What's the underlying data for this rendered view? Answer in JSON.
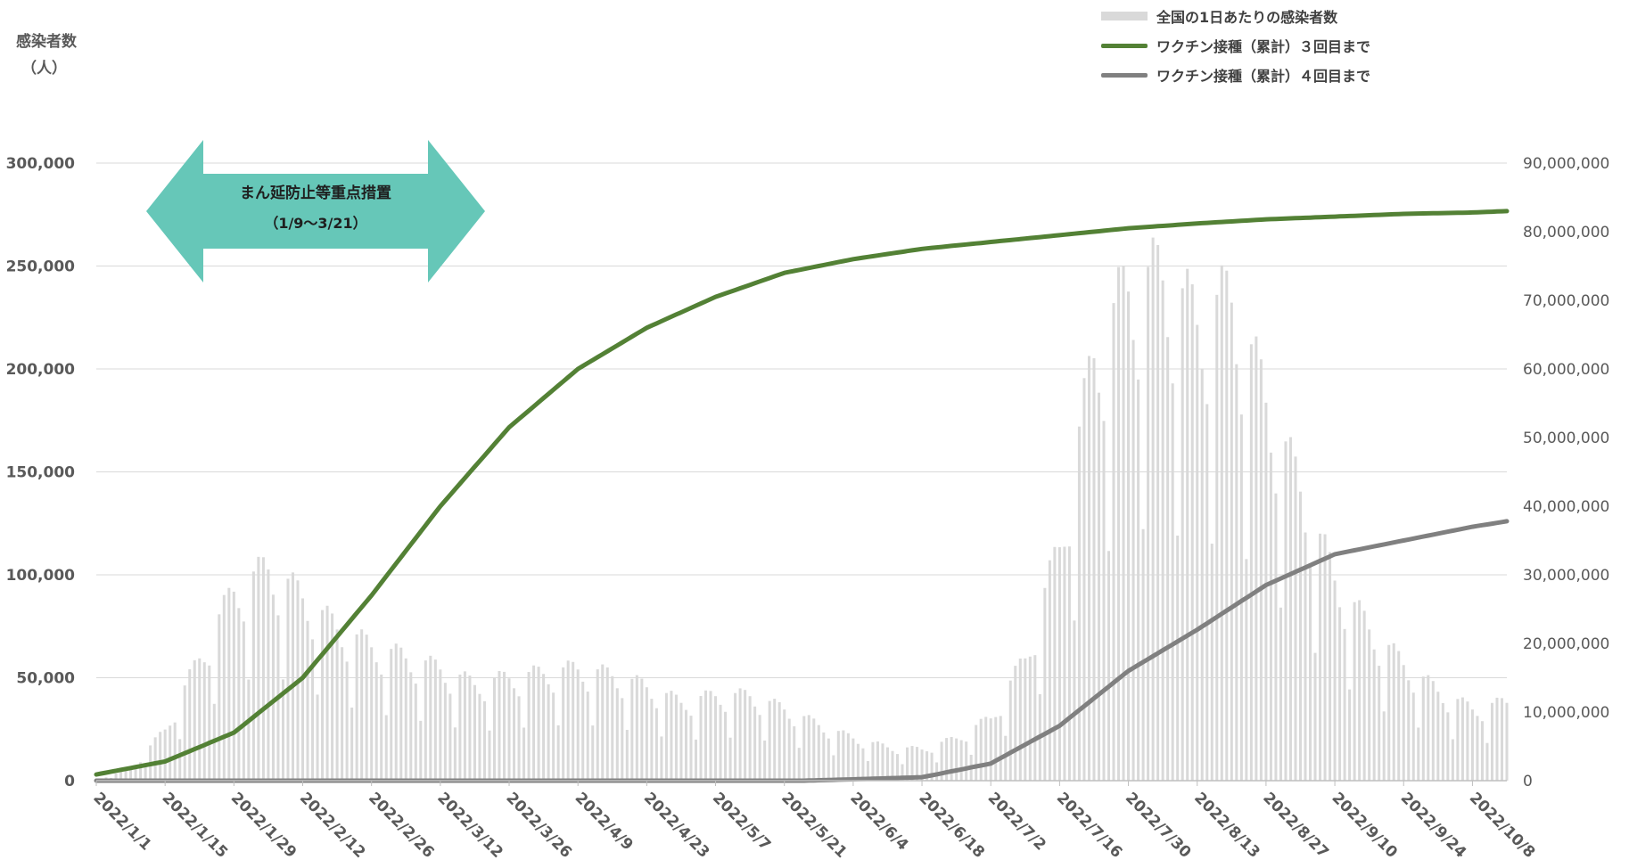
{
  "chart_data": {
    "type": "bar+line",
    "title": "",
    "ylabel_left": "感染者数",
    "ylabel_left_unit": "（人）",
    "ylim_left": [
      0,
      300000
    ],
    "ylim_right": [
      0,
      90000000
    ],
    "left_ticks": [
      "0",
      "50,000",
      "100,000",
      "150,000",
      "200,000",
      "250,000",
      "300,000"
    ],
    "right_ticks": [
      "0",
      "10,000,000",
      "20,000,000",
      "30,000,000",
      "40,000,000",
      "50,000,000",
      "60,000,000",
      "70,000,000",
      "80,000,000",
      "90,000,000"
    ],
    "x_tick_labels": [
      "2022/1/1",
      "2022/1/15",
      "2022/1/29",
      "2022/2/12",
      "2022/2/26",
      "2022/3/12",
      "2022/3/26",
      "2022/4/9",
      "2022/4/23",
      "2022/5/7",
      "2022/5/21",
      "2022/6/4",
      "2022/6/18",
      "2022/7/2",
      "2022/7/16",
      "2022/7/30",
      "2022/8/13",
      "2022/8/27",
      "2022/9/10",
      "2022/9/24",
      "2022/10/8"
    ],
    "start_date": "2022/1/1",
    "num_days": 288,
    "grid": true,
    "legend_position": "top-right",
    "annotation": {
      "line1": "まん延防止等重点措置",
      "line2": "（1/9～3/21）",
      "start": "2022/1/9",
      "end": "2022/3/21",
      "color": "#66c7b8"
    },
    "series": [
      {
        "name": "全国の1日あたりの感染者数",
        "kind": "bar",
        "axis": "left",
        "color": "#d9d9d9",
        "weekly_avg": [
          {
            "date": "2022/1/1",
            "value": 500
          },
          {
            "date": "2022/1/8",
            "value": 5000
          },
          {
            "date": "2022/1/15",
            "value": 23000
          },
          {
            "date": "2022/1/22",
            "value": 55000
          },
          {
            "date": "2022/1/29",
            "value": 85000
          },
          {
            "date": "2022/2/5",
            "value": 95000
          },
          {
            "date": "2022/2/12",
            "value": 82000
          },
          {
            "date": "2022/2/19",
            "value": 68000
          },
          {
            "date": "2022/2/26",
            "value": 60000
          },
          {
            "date": "2022/3/5",
            "value": 55000
          },
          {
            "date": "2022/3/12",
            "value": 50000
          },
          {
            "date": "2022/3/19",
            "value": 43000
          },
          {
            "date": "2022/3/26",
            "value": 46000
          },
          {
            "date": "2022/4/2",
            "value": 48000
          },
          {
            "date": "2022/4/9",
            "value": 50000
          },
          {
            "date": "2022/4/16",
            "value": 47000
          },
          {
            "date": "2022/4/23",
            "value": 42000
          },
          {
            "date": "2022/4/30",
            "value": 35000
          },
          {
            "date": "2022/5/7",
            "value": 38000
          },
          {
            "date": "2022/5/14",
            "value": 38000
          },
          {
            "date": "2022/5/21",
            "value": 32000
          },
          {
            "date": "2022/5/28",
            "value": 25000
          },
          {
            "date": "2022/6/4",
            "value": 19000
          },
          {
            "date": "2022/6/11",
            "value": 15000
          },
          {
            "date": "2022/6/18",
            "value": 14000
          },
          {
            "date": "2022/6/25",
            "value": 19000
          },
          {
            "date": "2022/7/2",
            "value": 28000
          },
          {
            "date": "2022/7/9",
            "value": 55000
          },
          {
            "date": "2022/7/16",
            "value": 105000
          },
          {
            "date": "2022/7/23",
            "value": 190000
          },
          {
            "date": "2022/7/30",
            "value": 220000
          },
          {
            "date": "2022/8/6",
            "value": 225000
          },
          {
            "date": "2022/8/13",
            "value": 205000
          },
          {
            "date": "2022/8/20",
            "value": 215000
          },
          {
            "date": "2022/8/27",
            "value": 170000
          },
          {
            "date": "2022/9/3",
            "value": 130000
          },
          {
            "date": "2022/9/10",
            "value": 90000
          },
          {
            "date": "2022/9/17",
            "value": 68000
          },
          {
            "date": "2022/9/24",
            "value": 52000
          },
          {
            "date": "2022/10/1",
            "value": 40000
          },
          {
            "date": "2022/10/8",
            "value": 32000
          },
          {
            "date": "2022/10/15",
            "value": 35000
          }
        ]
      },
      {
        "name": "ワクチン接種（累計）３回目まで",
        "kind": "line",
        "axis": "right",
        "color": "#538135",
        "points": [
          {
            "date": "2022/1/1",
            "value": 900000
          },
          {
            "date": "2022/1/15",
            "value": 2800000
          },
          {
            "date": "2022/1/29",
            "value": 7000000
          },
          {
            "date": "2022/2/12",
            "value": 15000000
          },
          {
            "date": "2022/2/26",
            "value": 27000000
          },
          {
            "date": "2022/3/12",
            "value": 40000000
          },
          {
            "date": "2022/3/26",
            "value": 51500000
          },
          {
            "date": "2022/4/9",
            "value": 60000000
          },
          {
            "date": "2022/4/23",
            "value": 66000000
          },
          {
            "date": "2022/5/7",
            "value": 70500000
          },
          {
            "date": "2022/5/21",
            "value": 74000000
          },
          {
            "date": "2022/6/4",
            "value": 76000000
          },
          {
            "date": "2022/6/18",
            "value": 77500000
          },
          {
            "date": "2022/7/2",
            "value": 78500000
          },
          {
            "date": "2022/7/16",
            "value": 79500000
          },
          {
            "date": "2022/7/30",
            "value": 80500000
          },
          {
            "date": "2022/8/13",
            "value": 81200000
          },
          {
            "date": "2022/8/27",
            "value": 81800000
          },
          {
            "date": "2022/9/10",
            "value": 82200000
          },
          {
            "date": "2022/9/24",
            "value": 82600000
          },
          {
            "date": "2022/10/8",
            "value": 82800000
          },
          {
            "date": "2022/10/15",
            "value": 83000000
          }
        ]
      },
      {
        "name": "ワクチン接種（累計）４回目まで",
        "kind": "line",
        "axis": "right",
        "color": "#808080",
        "points": [
          {
            "date": "2022/1/1",
            "value": 0
          },
          {
            "date": "2022/5/25",
            "value": 0
          },
          {
            "date": "2022/6/4",
            "value": 200000
          },
          {
            "date": "2022/6/18",
            "value": 500000
          },
          {
            "date": "2022/7/2",
            "value": 2500000
          },
          {
            "date": "2022/7/16",
            "value": 8000000
          },
          {
            "date": "2022/7/30",
            "value": 16000000
          },
          {
            "date": "2022/8/13",
            "value": 22000000
          },
          {
            "date": "2022/8/27",
            "value": 28500000
          },
          {
            "date": "2022/9/10",
            "value": 33000000
          },
          {
            "date": "2022/9/24",
            "value": 35000000
          },
          {
            "date": "2022/10/8",
            "value": 37000000
          },
          {
            "date": "2022/10/15",
            "value": 37800000
          }
        ]
      }
    ]
  }
}
